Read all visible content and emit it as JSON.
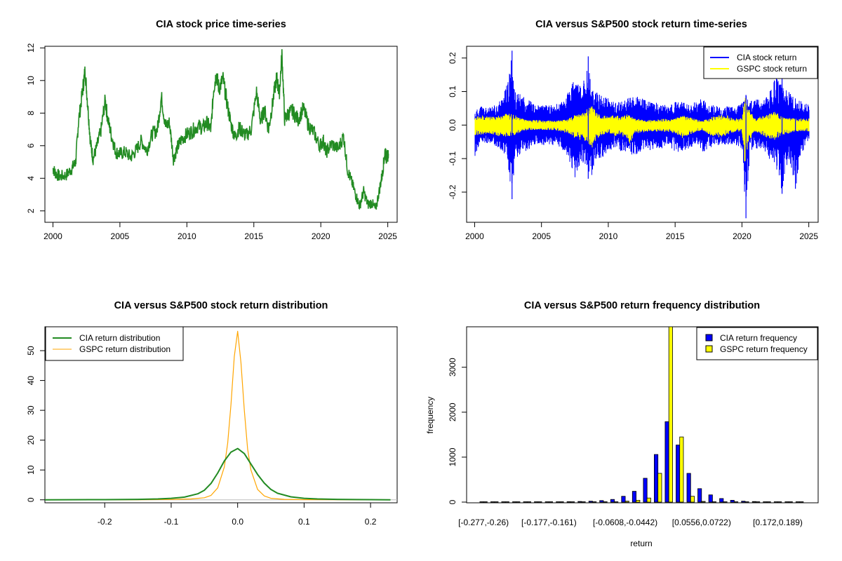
{
  "chart_data": [
    {
      "type": "line",
      "title": "CIA stock price time-series",
      "xlabel": "",
      "ylabel": "",
      "xlim": [
        1999.4,
        2025.7
      ],
      "ylim": [
        1.3,
        12.1
      ],
      "xticks": [
        "2000",
        "2005",
        "2010",
        "2015",
        "2020",
        "2025"
      ],
      "yticks": [
        "2",
        "4",
        "6",
        "8",
        "10",
        "12"
      ],
      "grid": false,
      "colors": {
        "line": "#228B22"
      },
      "series": [
        {
          "x": [
            2000.0,
            2000.2,
            2000.5,
            2001.0,
            2001.4,
            2001.7,
            2001.9,
            2002.2,
            2002.4,
            2002.6,
            2002.8,
            2003.0,
            2003.3,
            2003.6,
            2003.9,
            2004.1,
            2004.4,
            2004.7,
            2005.0,
            2005.4,
            2005.8,
            2006.2,
            2006.6,
            2007.0,
            2007.4,
            2007.8,
            2008.1,
            2008.4,
            2008.7,
            2009.0,
            2009.3,
            2009.6,
            2010.0,
            2010.4,
            2010.8,
            2011.2,
            2011.5,
            2011.8,
            2012.0,
            2012.2,
            2012.4,
            2012.7,
            2013.0,
            2013.3,
            2013.6,
            2013.9,
            2014.1,
            2014.4,
            2014.8,
            2015.2,
            2015.5,
            2015.8,
            2016.1,
            2016.4,
            2016.7,
            2016.9,
            2017.1,
            2017.3,
            2017.6,
            2017.9,
            2018.3,
            2018.7,
            2019.1,
            2019.5,
            2019.9,
            2020.2,
            2020.4,
            2020.8,
            2021.3,
            2021.7,
            2022.0,
            2022.3,
            2022.6,
            2022.9,
            2023.2,
            2023.5,
            2023.8,
            2024.1,
            2024.4,
            2024.6,
            2024.8,
            2024.9,
            2025.05
          ],
          "values": [
            4.6,
            4.3,
            4.1,
            4.2,
            4.6,
            5.0,
            7.4,
            9.3,
            10.6,
            8.5,
            6.2,
            5.2,
            6.0,
            7.0,
            8.8,
            7.6,
            6.5,
            5.6,
            5.5,
            5.6,
            5.3,
            5.7,
            6.3,
            5.7,
            6.7,
            7.0,
            9.0,
            7.2,
            7.4,
            5.2,
            5.9,
            6.4,
            6.7,
            6.9,
            7.2,
            7.1,
            7.4,
            7.0,
            9.5,
            10.4,
            9.5,
            10.1,
            8.6,
            7.3,
            6.5,
            7.1,
            6.9,
            6.6,
            7.0,
            9.3,
            7.5,
            8.2,
            7.0,
            8.6,
            10.2,
            9.2,
            11.6,
            7.6,
            8.0,
            8.1,
            7.6,
            8.3,
            7.2,
            6.8,
            6.0,
            6.3,
            5.6,
            6.1,
            5.8,
            6.6,
            4.5,
            3.8,
            3.0,
            2.3,
            3.2,
            2.4,
            2.5,
            2.1,
            3.4,
            4.3,
            5.7,
            5.2,
            5.5
          ]
        }
      ]
    },
    {
      "type": "line",
      "title": "CIA versus S&P500 stock return time-series",
      "xlabel": "",
      "ylabel": "",
      "xlim": [
        1999.4,
        2025.7
      ],
      "ylim": [
        -0.29,
        0.235
      ],
      "xticks": [
        "2000",
        "2005",
        "2010",
        "2015",
        "2020",
        "2025"
      ],
      "yticks": [
        "-0.2",
        "-0.1",
        "0.0",
        "0.1",
        "0.2"
      ],
      "grid": false,
      "legend": {
        "position": "top-right",
        "entries": [
          "CIA stock return",
          "GSPC stock return"
        ]
      },
      "colors": {
        "cia": "#0000FF",
        "gspc": "#FFFF00"
      },
      "series": [
        {
          "name": "CIA stock return",
          "x": [
            2000.0,
            2000.5,
            2001.0,
            2001.5,
            2002.0,
            2002.5,
            2002.8,
            2003.0,
            2003.5,
            2004.0,
            2004.5,
            2005.0,
            2005.5,
            2006.0,
            2006.5,
            2007.0,
            2007.5,
            2008.0,
            2008.5,
            2008.8,
            2009.0,
            2009.5,
            2010.0,
            2010.5,
            2011.0,
            2011.5,
            2012.0,
            2012.5,
            2013.0,
            2013.5,
            2014.0,
            2014.5,
            2015.0,
            2015.5,
            2016.0,
            2016.5,
            2017.0,
            2017.5,
            2018.0,
            2018.5,
            2019.0,
            2019.5,
            2020.0,
            2020.3,
            2020.6,
            2021.0,
            2021.5,
            2022.0,
            2022.5,
            2023.0,
            2023.5,
            2024.0,
            2024.5,
            2025.0
          ],
          "high": [
            0.04,
            0.06,
            0.05,
            0.06,
            0.08,
            0.13,
            0.22,
            0.1,
            0.09,
            0.08,
            0.06,
            0.06,
            0.06,
            0.06,
            0.07,
            0.1,
            0.14,
            0.11,
            0.18,
            0.12,
            0.1,
            0.09,
            0.08,
            0.07,
            0.07,
            0.08,
            0.09,
            0.08,
            0.07,
            0.07,
            0.06,
            0.06,
            0.07,
            0.07,
            0.06,
            0.07,
            0.08,
            0.06,
            0.06,
            0.05,
            0.06,
            0.05,
            0.07,
            0.1,
            0.07,
            0.08,
            0.07,
            0.09,
            0.15,
            0.12,
            0.1,
            0.08,
            0.07,
            0.06
          ],
          "low": [
            -0.1,
            -0.05,
            -0.06,
            -0.06,
            -0.08,
            -0.12,
            -0.22,
            -0.11,
            -0.08,
            -0.08,
            -0.06,
            -0.06,
            -0.06,
            -0.06,
            -0.07,
            -0.1,
            -0.17,
            -0.11,
            -0.14,
            -0.15,
            -0.11,
            -0.1,
            -0.08,
            -0.07,
            -0.08,
            -0.09,
            -0.09,
            -0.08,
            -0.08,
            -0.07,
            -0.07,
            -0.06,
            -0.08,
            -0.08,
            -0.07,
            -0.06,
            -0.09,
            -0.07,
            -0.06,
            -0.06,
            -0.06,
            -0.06,
            -0.07,
            -0.28,
            -0.08,
            -0.07,
            -0.07,
            -0.1,
            -0.12,
            -0.2,
            -0.1,
            -0.19,
            -0.08,
            -0.05
          ]
        },
        {
          "name": "GSPC stock return",
          "x": [
            2000.0,
            2000.5,
            2001.0,
            2001.5,
            2002.0,
            2002.5,
            2003.0,
            2003.5,
            2004.0,
            2005.0,
            2006.0,
            2007.0,
            2007.5,
            2008.0,
            2008.5,
            2008.8,
            2009.0,
            2009.5,
            2010.0,
            2010.5,
            2011.0,
            2011.6,
            2012.0,
            2013.0,
            2014.0,
            2015.0,
            2015.6,
            2016.0,
            2017.0,
            2018.0,
            2018.9,
            2019.5,
            2020.0,
            2020.2,
            2020.5,
            2021.0,
            2022.0,
            2022.5,
            2023.0,
            2024.0,
            2025.0
          ],
          "high": [
            0.025,
            0.03,
            0.025,
            0.025,
            0.03,
            0.035,
            0.03,
            0.02,
            0.015,
            0.015,
            0.012,
            0.02,
            0.03,
            0.035,
            0.05,
            0.06,
            0.045,
            0.03,
            0.025,
            0.03,
            0.025,
            0.035,
            0.02,
            0.015,
            0.018,
            0.02,
            0.035,
            0.025,
            0.012,
            0.03,
            0.03,
            0.02,
            0.02,
            0.09,
            0.05,
            0.02,
            0.035,
            0.04,
            0.025,
            0.02,
            0.02
          ],
          "low": [
            -0.03,
            -0.03,
            -0.025,
            -0.03,
            -0.035,
            -0.035,
            -0.03,
            -0.02,
            -0.015,
            -0.015,
            -0.015,
            -0.025,
            -0.04,
            -0.045,
            -0.06,
            -0.07,
            -0.05,
            -0.03,
            -0.025,
            -0.035,
            -0.03,
            -0.06,
            -0.025,
            -0.02,
            -0.02,
            -0.025,
            -0.04,
            -0.03,
            -0.015,
            -0.04,
            -0.03,
            -0.02,
            -0.02,
            -0.12,
            -0.05,
            -0.02,
            -0.04,
            -0.045,
            -0.03,
            -0.02,
            -0.02
          ]
        }
      ]
    },
    {
      "type": "line",
      "title": "CIA versus S&P500 stock return distribution",
      "xlabel": "",
      "ylabel": "",
      "xlim": [
        -0.29,
        0.24
      ],
      "ylim": [
        -1,
        58
      ],
      "xticks": [
        "-0.2",
        "-0.1",
        "0.0",
        "0.1",
        "0.2"
      ],
      "yticks": [
        "0",
        "10",
        "20",
        "30",
        "40",
        "50"
      ],
      "grid": false,
      "legend": {
        "position": "top-left",
        "entries": [
          "CIA return distribution",
          "GSPC return distribution"
        ]
      },
      "colors": {
        "cia": "#228B22",
        "gspc": "#FFA500",
        "baseline": "#BEBEBE"
      },
      "series": [
        {
          "name": "CIA return distribution",
          "x": [
            -0.29,
            -0.2,
            -0.15,
            -0.12,
            -0.1,
            -0.08,
            -0.06,
            -0.05,
            -0.04,
            -0.03,
            -0.02,
            -0.01,
            0.0,
            0.01,
            0.02,
            0.03,
            0.04,
            0.05,
            0.06,
            0.08,
            0.1,
            0.12,
            0.15,
            0.2,
            0.23
          ],
          "values": [
            0,
            0.05,
            0.15,
            0.3,
            0.5,
            0.9,
            2.0,
            3.2,
            5.5,
            9.0,
            13.0,
            16.0,
            17.2,
            15.5,
            12.0,
            8.5,
            5.6,
            3.5,
            2.2,
            1.0,
            0.5,
            0.3,
            0.15,
            0.05,
            0
          ]
        },
        {
          "name": "GSPC return distribution",
          "x": [
            -0.29,
            -0.15,
            -0.1,
            -0.07,
            -0.05,
            -0.04,
            -0.03,
            -0.02,
            -0.015,
            -0.01,
            -0.005,
            0.0,
            0.005,
            0.01,
            0.015,
            0.02,
            0.03,
            0.04,
            0.05,
            0.07,
            0.1,
            0.23
          ],
          "values": [
            0,
            0,
            0.1,
            0.3,
            0.7,
            1.5,
            4.0,
            11.0,
            19.0,
            32.0,
            48.0,
            56.5,
            46.0,
            30.0,
            17.0,
            10.0,
            3.5,
            1.3,
            0.5,
            0.15,
            0.05,
            0
          ]
        }
      ]
    },
    {
      "type": "bar",
      "title": "CIA versus S&P500 return frequency distribution",
      "xlabel": "return",
      "ylabel": "frequency",
      "ylim": [
        0,
        3900
      ],
      "yticks": [
        "0",
        "1000",
        "2000",
        "3000"
      ],
      "xtick_labels": [
        "[-0.277,-0.26)",
        "[-0.177,-0.161)",
        "[-0.0608,-0.0442)",
        "[0.0556,0.0722)",
        "[0.172,0.189)"
      ],
      "xtick_indices": [
        0,
        6,
        13,
        20,
        27
      ],
      "grid": false,
      "legend": {
        "position": "top-right",
        "entries": [
          "CIA return frequency",
          "GSPC return frequency"
        ]
      },
      "colors": {
        "cia": "#0000FF",
        "gspc": "#FFFF00"
      },
      "categories": [
        "[-0.277,-0.26)",
        "",
        "",
        "",
        "",
        "",
        "[-0.177,-0.161)",
        "",
        "",
        "",
        "",
        "",
        "",
        "[-0.0608,-0.0442)",
        "",
        "",
        "",
        "",
        "",
        "",
        "[0.0556,0.0722)",
        "",
        "",
        "",
        "",
        "",
        "",
        "[0.172,0.189)",
        "",
        ""
      ],
      "series": [
        {
          "name": "CIA return frequency",
          "values": [
            2,
            1,
            1,
            1,
            2,
            3,
            4,
            6,
            9,
            14,
            20,
            35,
            60,
            130,
            240,
            530,
            1060,
            1790,
            1270,
            640,
            300,
            160,
            80,
            40,
            20,
            12,
            7,
            4,
            3,
            1
          ]
        },
        {
          "name": "GSPC return frequency",
          "values": [
            0,
            0,
            0,
            0,
            0,
            0,
            0,
            0,
            1,
            1,
            2,
            3,
            8,
            20,
            40,
            90,
            640,
            3950,
            1450,
            130,
            15,
            5,
            2,
            1,
            0,
            0,
            0,
            0,
            0,
            0
          ]
        }
      ]
    }
  ]
}
